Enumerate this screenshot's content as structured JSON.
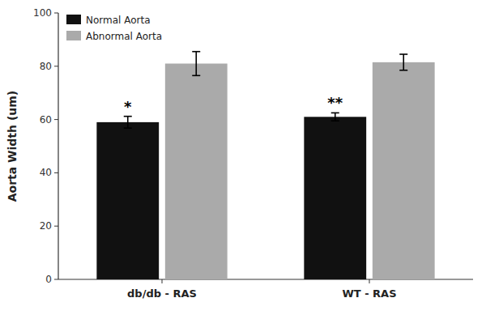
{
  "chart_data": {
    "type": "bar",
    "y_label": "Aorta Width (um)",
    "categories": [
      "db/db - RAS",
      "WT - RAS"
    ],
    "series": [
      {
        "name": "Normal Aorta",
        "color": "#111111",
        "values": [
          59.0,
          61.0
        ],
        "errors": [
          2.2,
          1.5
        ],
        "annotations": [
          "*",
          "**"
        ]
      },
      {
        "name": "Abnormal Aorta",
        "color": "#AAAAAA",
        "values": [
          81.0,
          81.5
        ],
        "errors": [
          4.5,
          3.0
        ]
      }
    ],
    "ylim": [
      0,
      100
    ],
    "yticks": [
      0,
      20,
      40,
      60,
      80,
      100
    ],
    "grid": false,
    "legend": "upper left"
  }
}
